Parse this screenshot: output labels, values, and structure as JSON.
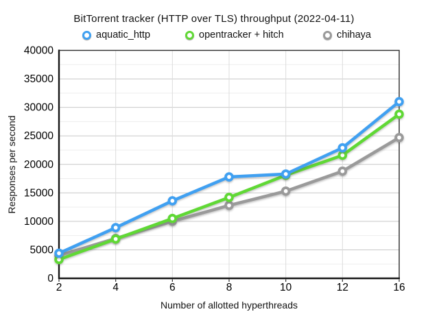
{
  "title": "BitTorrent tracker (HTTP over TLS) throughput (2022-04-11)",
  "chart_data": {
    "type": "line",
    "title": "BitTorrent tracker (HTTP over TLS) throughput (2022-04-11)",
    "xlabel": "Number of allotted hyperthreads",
    "ylabel": "Responses per second",
    "categories": [
      2,
      4,
      6,
      8,
      10,
      12,
      16
    ],
    "series": [
      {
        "name": "aquatic_http",
        "color": "#3FA0F1",
        "values": [
          4400,
          8900,
          13600,
          17800,
          18300,
          22900,
          31000
        ]
      },
      {
        "name": "opentracker + hitch",
        "color": "#61D836",
        "values": [
          3300,
          6900,
          10500,
          14200,
          18100,
          21600,
          28800
        ]
      },
      {
        "name": "chihaya",
        "color": "#9A9A9A",
        "values": [
          4000,
          7000,
          10000,
          12800,
          15300,
          18800,
          24700
        ]
      }
    ],
    "ylim": [
      0,
      40000
    ],
    "y_major_step": 5000,
    "y_minor_step": 2500,
    "grid": true,
    "legend_position": "top",
    "marker_style": "ring"
  }
}
